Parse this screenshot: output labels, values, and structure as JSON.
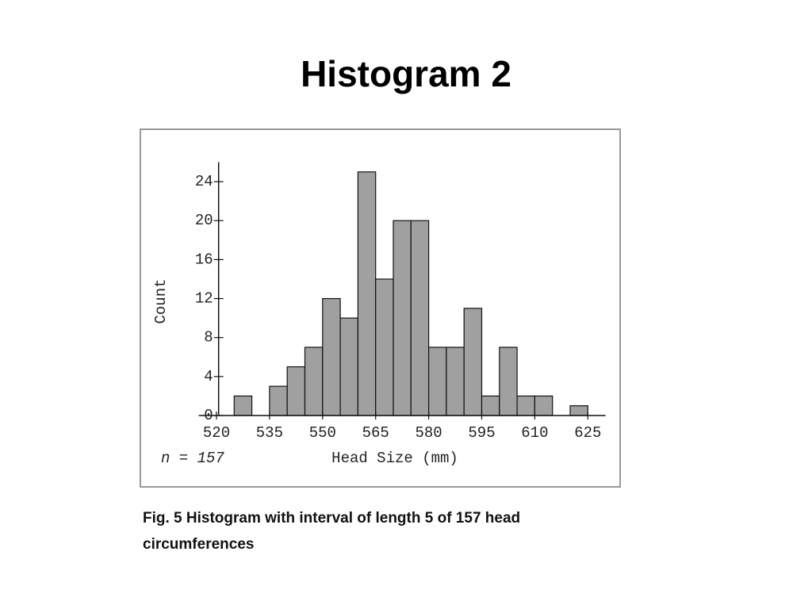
{
  "title": "Histogram 2",
  "chart_data": {
    "type": "histogram",
    "x_label": "Head Size (mm)",
    "y_label": "Count",
    "annotation": "n = 157",
    "caption": "Fig. 5  Histogram with interval of length 5 of 157 head circumferences",
    "bins": [
      525,
      530,
      535,
      540,
      545,
      550,
      555,
      560,
      565,
      570,
      575,
      580,
      585,
      590,
      595,
      600,
      605,
      610,
      615,
      620,
      625
    ],
    "values": [
      2,
      0,
      3,
      5,
      7,
      12,
      10,
      25,
      14,
      20,
      20,
      7,
      7,
      11,
      2,
      7,
      2,
      2,
      0,
      1
    ],
    "color": "#a0a0a0",
    "xlim": [
      515,
      630
    ],
    "xticks": [
      520,
      535,
      550,
      565,
      580,
      595,
      610,
      625
    ],
    "ylim": [
      0,
      26
    ],
    "yticks": [
      0,
      4,
      8,
      12,
      16,
      20,
      24
    ],
    "grid": false
  }
}
